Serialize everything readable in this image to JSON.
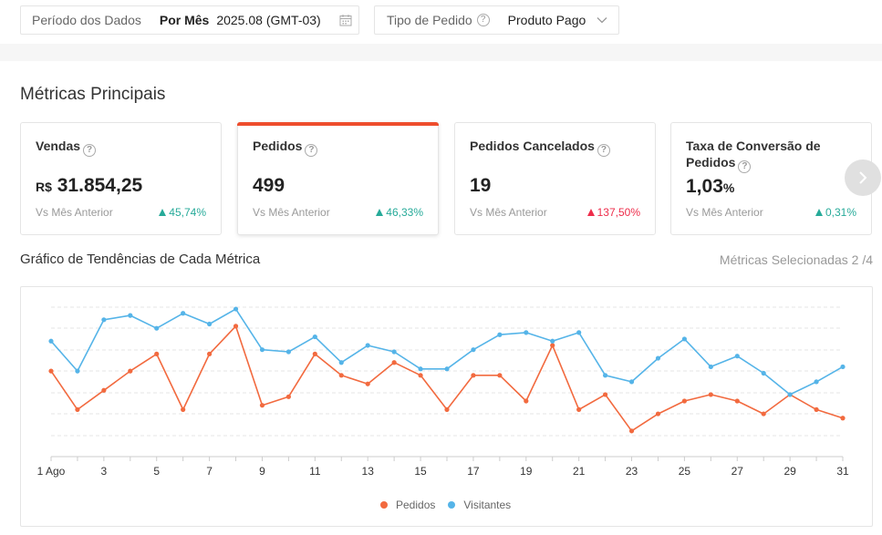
{
  "filters": {
    "period": {
      "label": "Período dos Dados",
      "mode": "Por Mês",
      "value": "2025.08 (GMT-03)",
      "icon": "calendar-icon"
    },
    "order_type": {
      "label": "Tipo de Pedido",
      "value": "Produto Pago",
      "icon": "chevron-down-icon"
    }
  },
  "section": {
    "title": "Métricas Principais"
  },
  "cards": [
    {
      "title": "Vendas",
      "currency": "R$",
      "value": "31.854,25",
      "unit": "",
      "compare": "Vs Mês Anterior",
      "change": "45,74%",
      "trend": "up"
    },
    {
      "title": "Pedidos",
      "currency": "",
      "value": "499",
      "unit": "",
      "compare": "Vs Mês Anterior",
      "change": "46,33%",
      "trend": "up"
    },
    {
      "title": "Pedidos Cancelados",
      "currency": "",
      "value": "19",
      "unit": "",
      "compare": "Vs Mês Anterior",
      "change": "137,50%",
      "trend": "up-negative"
    },
    {
      "title": "Taxa de Conversão de Pedidos",
      "currency": "",
      "value": "1,03",
      "unit": "%",
      "compare": "Vs Mês Anterior",
      "change": "0,31%",
      "trend": "up"
    }
  ],
  "colors": {
    "accent": "#ee4d2d",
    "positive": "#26aa99",
    "negative": "#ee2c4a",
    "series_pedidos": "#f26a3f",
    "series_visitantes": "#55b4e8"
  },
  "chart": {
    "title": "Gráfico de Tendências de Cada Métrica",
    "selected": "Métricas Selecionadas 2 /4"
  },
  "chart_data": {
    "type": "line",
    "x": [
      1,
      2,
      3,
      4,
      5,
      6,
      7,
      8,
      9,
      10,
      11,
      12,
      13,
      14,
      15,
      16,
      17,
      18,
      19,
      20,
      21,
      22,
      23,
      24,
      25,
      26,
      27,
      28,
      29,
      30,
      31
    ],
    "x_tick_labels": [
      "1 Ago",
      "3",
      "5",
      "7",
      "9",
      "11",
      "13",
      "15",
      "17",
      "19",
      "21",
      "23",
      "25",
      "27",
      "29",
      "31"
    ],
    "x_tick_values": [
      1,
      3,
      5,
      7,
      9,
      11,
      13,
      15,
      17,
      19,
      21,
      23,
      25,
      27,
      29,
      31
    ],
    "y_axis_labels": "none",
    "grid": true,
    "legend": "bottom-center",
    "series": [
      {
        "name": "Pedidos",
        "color": "#f26a3f",
        "values": [
          40,
          22,
          31,
          40,
          48,
          22,
          48,
          61,
          24,
          28,
          48,
          38,
          34,
          44,
          38,
          22,
          38,
          38,
          26,
          52,
          22,
          29,
          12,
          20,
          26,
          29,
          26,
          20,
          29,
          22,
          18
        ]
      },
      {
        "name": "Visitantes",
        "color": "#55b4e8",
        "values": [
          54,
          40,
          64,
          66,
          60,
          67,
          62,
          69,
          50,
          49,
          56,
          44,
          52,
          49,
          41,
          41,
          50,
          57,
          58,
          54,
          58,
          38,
          35,
          46,
          55,
          42,
          47,
          39,
          29,
          35,
          42
        ]
      }
    ]
  }
}
